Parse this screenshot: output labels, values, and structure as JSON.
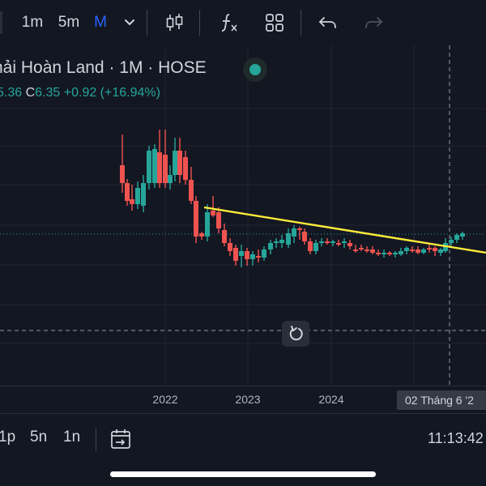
{
  "toolbar": {
    "intervals": [
      {
        "label": "1m",
        "active": false
      },
      {
        "label": "5m",
        "active": false
      },
      {
        "label": "M",
        "active": true
      }
    ],
    "dropdown_icon": "chevron-down-icon",
    "icons": [
      "candles-icon",
      "indicators-fx-icon",
      "layouts-grid-icon",
      "undo-icon",
      "redo-icon"
    ]
  },
  "legend": {
    "title": "hải Hoàn Land · 1M · HOSE",
    "status_color": "#26a69a",
    "open_value": "5.36",
    "close_label": "C",
    "close_value": "6.35",
    "change": "+0.92 (+16.94%)"
  },
  "chart_data": {
    "type": "candlestick",
    "x_ticks": [
      "2022",
      "2023",
      "2024"
    ],
    "crosshair_label": "02 Tháng 6 '2",
    "up_color": "#26a69a",
    "down_color": "#ef5350",
    "trendline_color": "#ffeb3b",
    "grid": true
  },
  "bottom": {
    "ranges": [
      "1p",
      "5n",
      "1n"
    ],
    "calendar_icon": "calendar-goto-icon",
    "time": "11:13:42"
  },
  "reset_icon": "reset-chart-icon"
}
